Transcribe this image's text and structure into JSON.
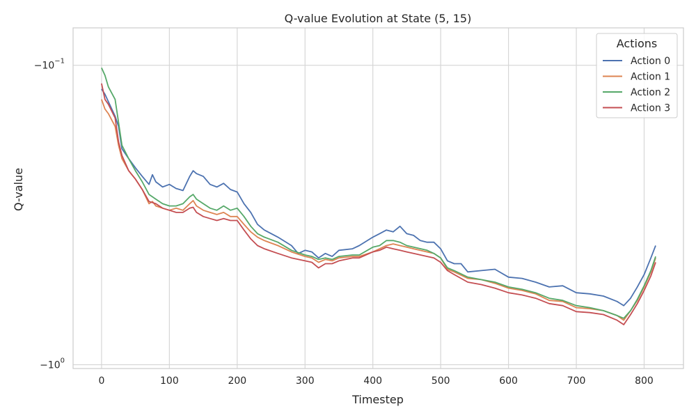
{
  "chart_data": {
    "type": "line",
    "title": "Q-value Evolution at State (5, 15)",
    "xlabel": "Timestep",
    "ylabel": "Q-value",
    "xlim": [
      -42,
      858
    ],
    "x_ticks": [
      0,
      100,
      200,
      300,
      400,
      500,
      600,
      700,
      800
    ],
    "y_scale": "symlog",
    "ylim": [
      -1.03,
      -0.075
    ],
    "y_ticks": [
      {
        "value": -0.1,
        "base": "−10",
        "exp": "−1"
      },
      {
        "value": -1.0,
        "base": "−10",
        "exp": "0"
      }
    ],
    "grid": true,
    "legend": {
      "title": "Actions",
      "placement": "top-right"
    },
    "series": [
      {
        "name": "Action 0",
        "color": "#4c72b0",
        "points": [
          [
            0,
            -0.12
          ],
          [
            5,
            -0.125
          ],
          [
            20,
            -0.148
          ],
          [
            25,
            -0.16
          ],
          [
            30,
            -0.19
          ],
          [
            40,
            -0.205
          ],
          [
            50,
            -0.22
          ],
          [
            60,
            -0.235
          ],
          [
            70,
            -0.25
          ],
          [
            75,
            -0.232
          ],
          [
            80,
            -0.245
          ],
          [
            90,
            -0.255
          ],
          [
            100,
            -0.25
          ],
          [
            110,
            -0.258
          ],
          [
            120,
            -0.262
          ],
          [
            130,
            -0.235
          ],
          [
            135,
            -0.225
          ],
          [
            140,
            -0.23
          ],
          [
            150,
            -0.235
          ],
          [
            160,
            -0.25
          ],
          [
            170,
            -0.255
          ],
          [
            180,
            -0.248
          ],
          [
            190,
            -0.26
          ],
          [
            200,
            -0.265
          ],
          [
            210,
            -0.29
          ],
          [
            220,
            -0.31
          ],
          [
            230,
            -0.34
          ],
          [
            240,
            -0.355
          ],
          [
            260,
            -0.375
          ],
          [
            280,
            -0.4
          ],
          [
            290,
            -0.425
          ],
          [
            300,
            -0.415
          ],
          [
            310,
            -0.42
          ],
          [
            320,
            -0.44
          ],
          [
            330,
            -0.425
          ],
          [
            340,
            -0.435
          ],
          [
            350,
            -0.415
          ],
          [
            370,
            -0.41
          ],
          [
            380,
            -0.4
          ],
          [
            400,
            -0.375
          ],
          [
            410,
            -0.365
          ],
          [
            420,
            -0.355
          ],
          [
            430,
            -0.36
          ],
          [
            440,
            -0.345
          ],
          [
            450,
            -0.365
          ],
          [
            460,
            -0.37
          ],
          [
            470,
            -0.385
          ],
          [
            480,
            -0.39
          ],
          [
            490,
            -0.39
          ],
          [
            500,
            -0.41
          ],
          [
            510,
            -0.45
          ],
          [
            520,
            -0.46
          ],
          [
            530,
            -0.46
          ],
          [
            540,
            -0.49
          ],
          [
            560,
            -0.485
          ],
          [
            580,
            -0.48
          ],
          [
            600,
            -0.51
          ],
          [
            620,
            -0.515
          ],
          [
            640,
            -0.53
          ],
          [
            660,
            -0.55
          ],
          [
            680,
            -0.545
          ],
          [
            700,
            -0.575
          ],
          [
            720,
            -0.58
          ],
          [
            740,
            -0.59
          ],
          [
            760,
            -0.615
          ],
          [
            770,
            -0.635
          ],
          [
            780,
            -0.6
          ],
          [
            790,
            -0.55
          ],
          [
            800,
            -0.5
          ],
          [
            810,
            -0.44
          ],
          [
            817,
            -0.4
          ]
        ]
      },
      {
        "name": "Action 1",
        "color": "#dd8452",
        "points": [
          [
            0,
            -0.13
          ],
          [
            5,
            -0.14
          ],
          [
            10,
            -0.145
          ],
          [
            20,
            -0.16
          ],
          [
            25,
            -0.185
          ],
          [
            30,
            -0.205
          ],
          [
            40,
            -0.225
          ],
          [
            50,
            -0.24
          ],
          [
            60,
            -0.26
          ],
          [
            70,
            -0.29
          ],
          [
            75,
            -0.285
          ],
          [
            80,
            -0.295
          ],
          [
            90,
            -0.3
          ],
          [
            100,
            -0.305
          ],
          [
            110,
            -0.3
          ],
          [
            120,
            -0.305
          ],
          [
            130,
            -0.29
          ],
          [
            135,
            -0.283
          ],
          [
            140,
            -0.295
          ],
          [
            150,
            -0.305
          ],
          [
            160,
            -0.31
          ],
          [
            170,
            -0.315
          ],
          [
            180,
            -0.31
          ],
          [
            190,
            -0.32
          ],
          [
            200,
            -0.32
          ],
          [
            210,
            -0.34
          ],
          [
            220,
            -0.36
          ],
          [
            230,
            -0.375
          ],
          [
            240,
            -0.385
          ],
          [
            260,
            -0.4
          ],
          [
            280,
            -0.42
          ],
          [
            300,
            -0.435
          ],
          [
            310,
            -0.44
          ],
          [
            320,
            -0.455
          ],
          [
            330,
            -0.445
          ],
          [
            340,
            -0.45
          ],
          [
            350,
            -0.44
          ],
          [
            370,
            -0.435
          ],
          [
            380,
            -0.435
          ],
          [
            400,
            -0.42
          ],
          [
            410,
            -0.41
          ],
          [
            420,
            -0.4
          ],
          [
            430,
            -0.395
          ],
          [
            440,
            -0.4
          ],
          [
            450,
            -0.405
          ],
          [
            460,
            -0.41
          ],
          [
            480,
            -0.42
          ],
          [
            490,
            -0.425
          ],
          [
            500,
            -0.44
          ],
          [
            510,
            -0.48
          ],
          [
            520,
            -0.49
          ],
          [
            540,
            -0.515
          ],
          [
            560,
            -0.52
          ],
          [
            580,
            -0.535
          ],
          [
            600,
            -0.555
          ],
          [
            620,
            -0.565
          ],
          [
            640,
            -0.58
          ],
          [
            660,
            -0.61
          ],
          [
            680,
            -0.615
          ],
          [
            700,
            -0.645
          ],
          [
            720,
            -0.65
          ],
          [
            740,
            -0.66
          ],
          [
            760,
            -0.685
          ],
          [
            770,
            -0.71
          ],
          [
            780,
            -0.66
          ],
          [
            790,
            -0.61
          ],
          [
            800,
            -0.55
          ],
          [
            810,
            -0.49
          ],
          [
            817,
            -0.44
          ]
        ]
      },
      {
        "name": "Action 2",
        "color": "#55a868",
        "points": [
          [
            0,
            -0.102
          ],
          [
            5,
            -0.108
          ],
          [
            10,
            -0.118
          ],
          [
            20,
            -0.13
          ],
          [
            25,
            -0.155
          ],
          [
            30,
            -0.185
          ],
          [
            40,
            -0.205
          ],
          [
            50,
            -0.225
          ],
          [
            60,
            -0.245
          ],
          [
            70,
            -0.27
          ],
          [
            80,
            -0.28
          ],
          [
            90,
            -0.29
          ],
          [
            100,
            -0.295
          ],
          [
            110,
            -0.295
          ],
          [
            120,
            -0.29
          ],
          [
            130,
            -0.275
          ],
          [
            135,
            -0.27
          ],
          [
            140,
            -0.28
          ],
          [
            150,
            -0.29
          ],
          [
            160,
            -0.3
          ],
          [
            170,
            -0.305
          ],
          [
            180,
            -0.295
          ],
          [
            190,
            -0.305
          ],
          [
            200,
            -0.3
          ],
          [
            210,
            -0.32
          ],
          [
            220,
            -0.345
          ],
          [
            230,
            -0.365
          ],
          [
            240,
            -0.375
          ],
          [
            260,
            -0.39
          ],
          [
            280,
            -0.415
          ],
          [
            300,
            -0.43
          ],
          [
            310,
            -0.435
          ],
          [
            320,
            -0.445
          ],
          [
            330,
            -0.44
          ],
          [
            340,
            -0.445
          ],
          [
            350,
            -0.435
          ],
          [
            370,
            -0.43
          ],
          [
            380,
            -0.43
          ],
          [
            400,
            -0.405
          ],
          [
            410,
            -0.4
          ],
          [
            420,
            -0.385
          ],
          [
            430,
            -0.385
          ],
          [
            440,
            -0.39
          ],
          [
            450,
            -0.4
          ],
          [
            460,
            -0.405
          ],
          [
            480,
            -0.415
          ],
          [
            490,
            -0.425
          ],
          [
            500,
            -0.44
          ],
          [
            510,
            -0.475
          ],
          [
            520,
            -0.485
          ],
          [
            540,
            -0.51
          ],
          [
            560,
            -0.52
          ],
          [
            580,
            -0.53
          ],
          [
            600,
            -0.55
          ],
          [
            620,
            -0.56
          ],
          [
            640,
            -0.575
          ],
          [
            660,
            -0.6
          ],
          [
            680,
            -0.61
          ],
          [
            700,
            -0.635
          ],
          [
            720,
            -0.645
          ],
          [
            740,
            -0.66
          ],
          [
            760,
            -0.685
          ],
          [
            770,
            -0.7
          ],
          [
            780,
            -0.66
          ],
          [
            790,
            -0.605
          ],
          [
            800,
            -0.545
          ],
          [
            810,
            -0.485
          ],
          [
            817,
            -0.435
          ]
        ]
      },
      {
        "name": "Action 3",
        "color": "#c44e52",
        "points": [
          [
            0,
            -0.115
          ],
          [
            5,
            -0.13
          ],
          [
            10,
            -0.135
          ],
          [
            20,
            -0.15
          ],
          [
            25,
            -0.18
          ],
          [
            30,
            -0.2
          ],
          [
            40,
            -0.225
          ],
          [
            50,
            -0.24
          ],
          [
            60,
            -0.26
          ],
          [
            70,
            -0.285
          ],
          [
            80,
            -0.29
          ],
          [
            90,
            -0.3
          ],
          [
            100,
            -0.305
          ],
          [
            110,
            -0.31
          ],
          [
            120,
            -0.31
          ],
          [
            130,
            -0.3
          ],
          [
            135,
            -0.298
          ],
          [
            140,
            -0.31
          ],
          [
            150,
            -0.32
          ],
          [
            160,
            -0.325
          ],
          [
            170,
            -0.33
          ],
          [
            180,
            -0.325
          ],
          [
            190,
            -0.33
          ],
          [
            200,
            -0.33
          ],
          [
            210,
            -0.355
          ],
          [
            220,
            -0.38
          ],
          [
            230,
            -0.4
          ],
          [
            240,
            -0.41
          ],
          [
            260,
            -0.425
          ],
          [
            280,
            -0.44
          ],
          [
            300,
            -0.45
          ],
          [
            310,
            -0.455
          ],
          [
            320,
            -0.475
          ],
          [
            330,
            -0.46
          ],
          [
            340,
            -0.46
          ],
          [
            350,
            -0.45
          ],
          [
            370,
            -0.44
          ],
          [
            380,
            -0.44
          ],
          [
            400,
            -0.42
          ],
          [
            410,
            -0.415
          ],
          [
            420,
            -0.405
          ],
          [
            430,
            -0.41
          ],
          [
            440,
            -0.415
          ],
          [
            450,
            -0.42
          ],
          [
            460,
            -0.425
          ],
          [
            480,
            -0.435
          ],
          [
            490,
            -0.44
          ],
          [
            500,
            -0.455
          ],
          [
            510,
            -0.485
          ],
          [
            520,
            -0.5
          ],
          [
            540,
            -0.53
          ],
          [
            560,
            -0.54
          ],
          [
            580,
            -0.555
          ],
          [
            600,
            -0.575
          ],
          [
            620,
            -0.585
          ],
          [
            640,
            -0.6
          ],
          [
            660,
            -0.625
          ],
          [
            680,
            -0.635
          ],
          [
            700,
            -0.665
          ],
          [
            720,
            -0.67
          ],
          [
            740,
            -0.68
          ],
          [
            760,
            -0.71
          ],
          [
            770,
            -0.735
          ],
          [
            780,
            -0.68
          ],
          [
            790,
            -0.625
          ],
          [
            800,
            -0.565
          ],
          [
            810,
            -0.505
          ],
          [
            817,
            -0.455
          ]
        ]
      }
    ]
  }
}
